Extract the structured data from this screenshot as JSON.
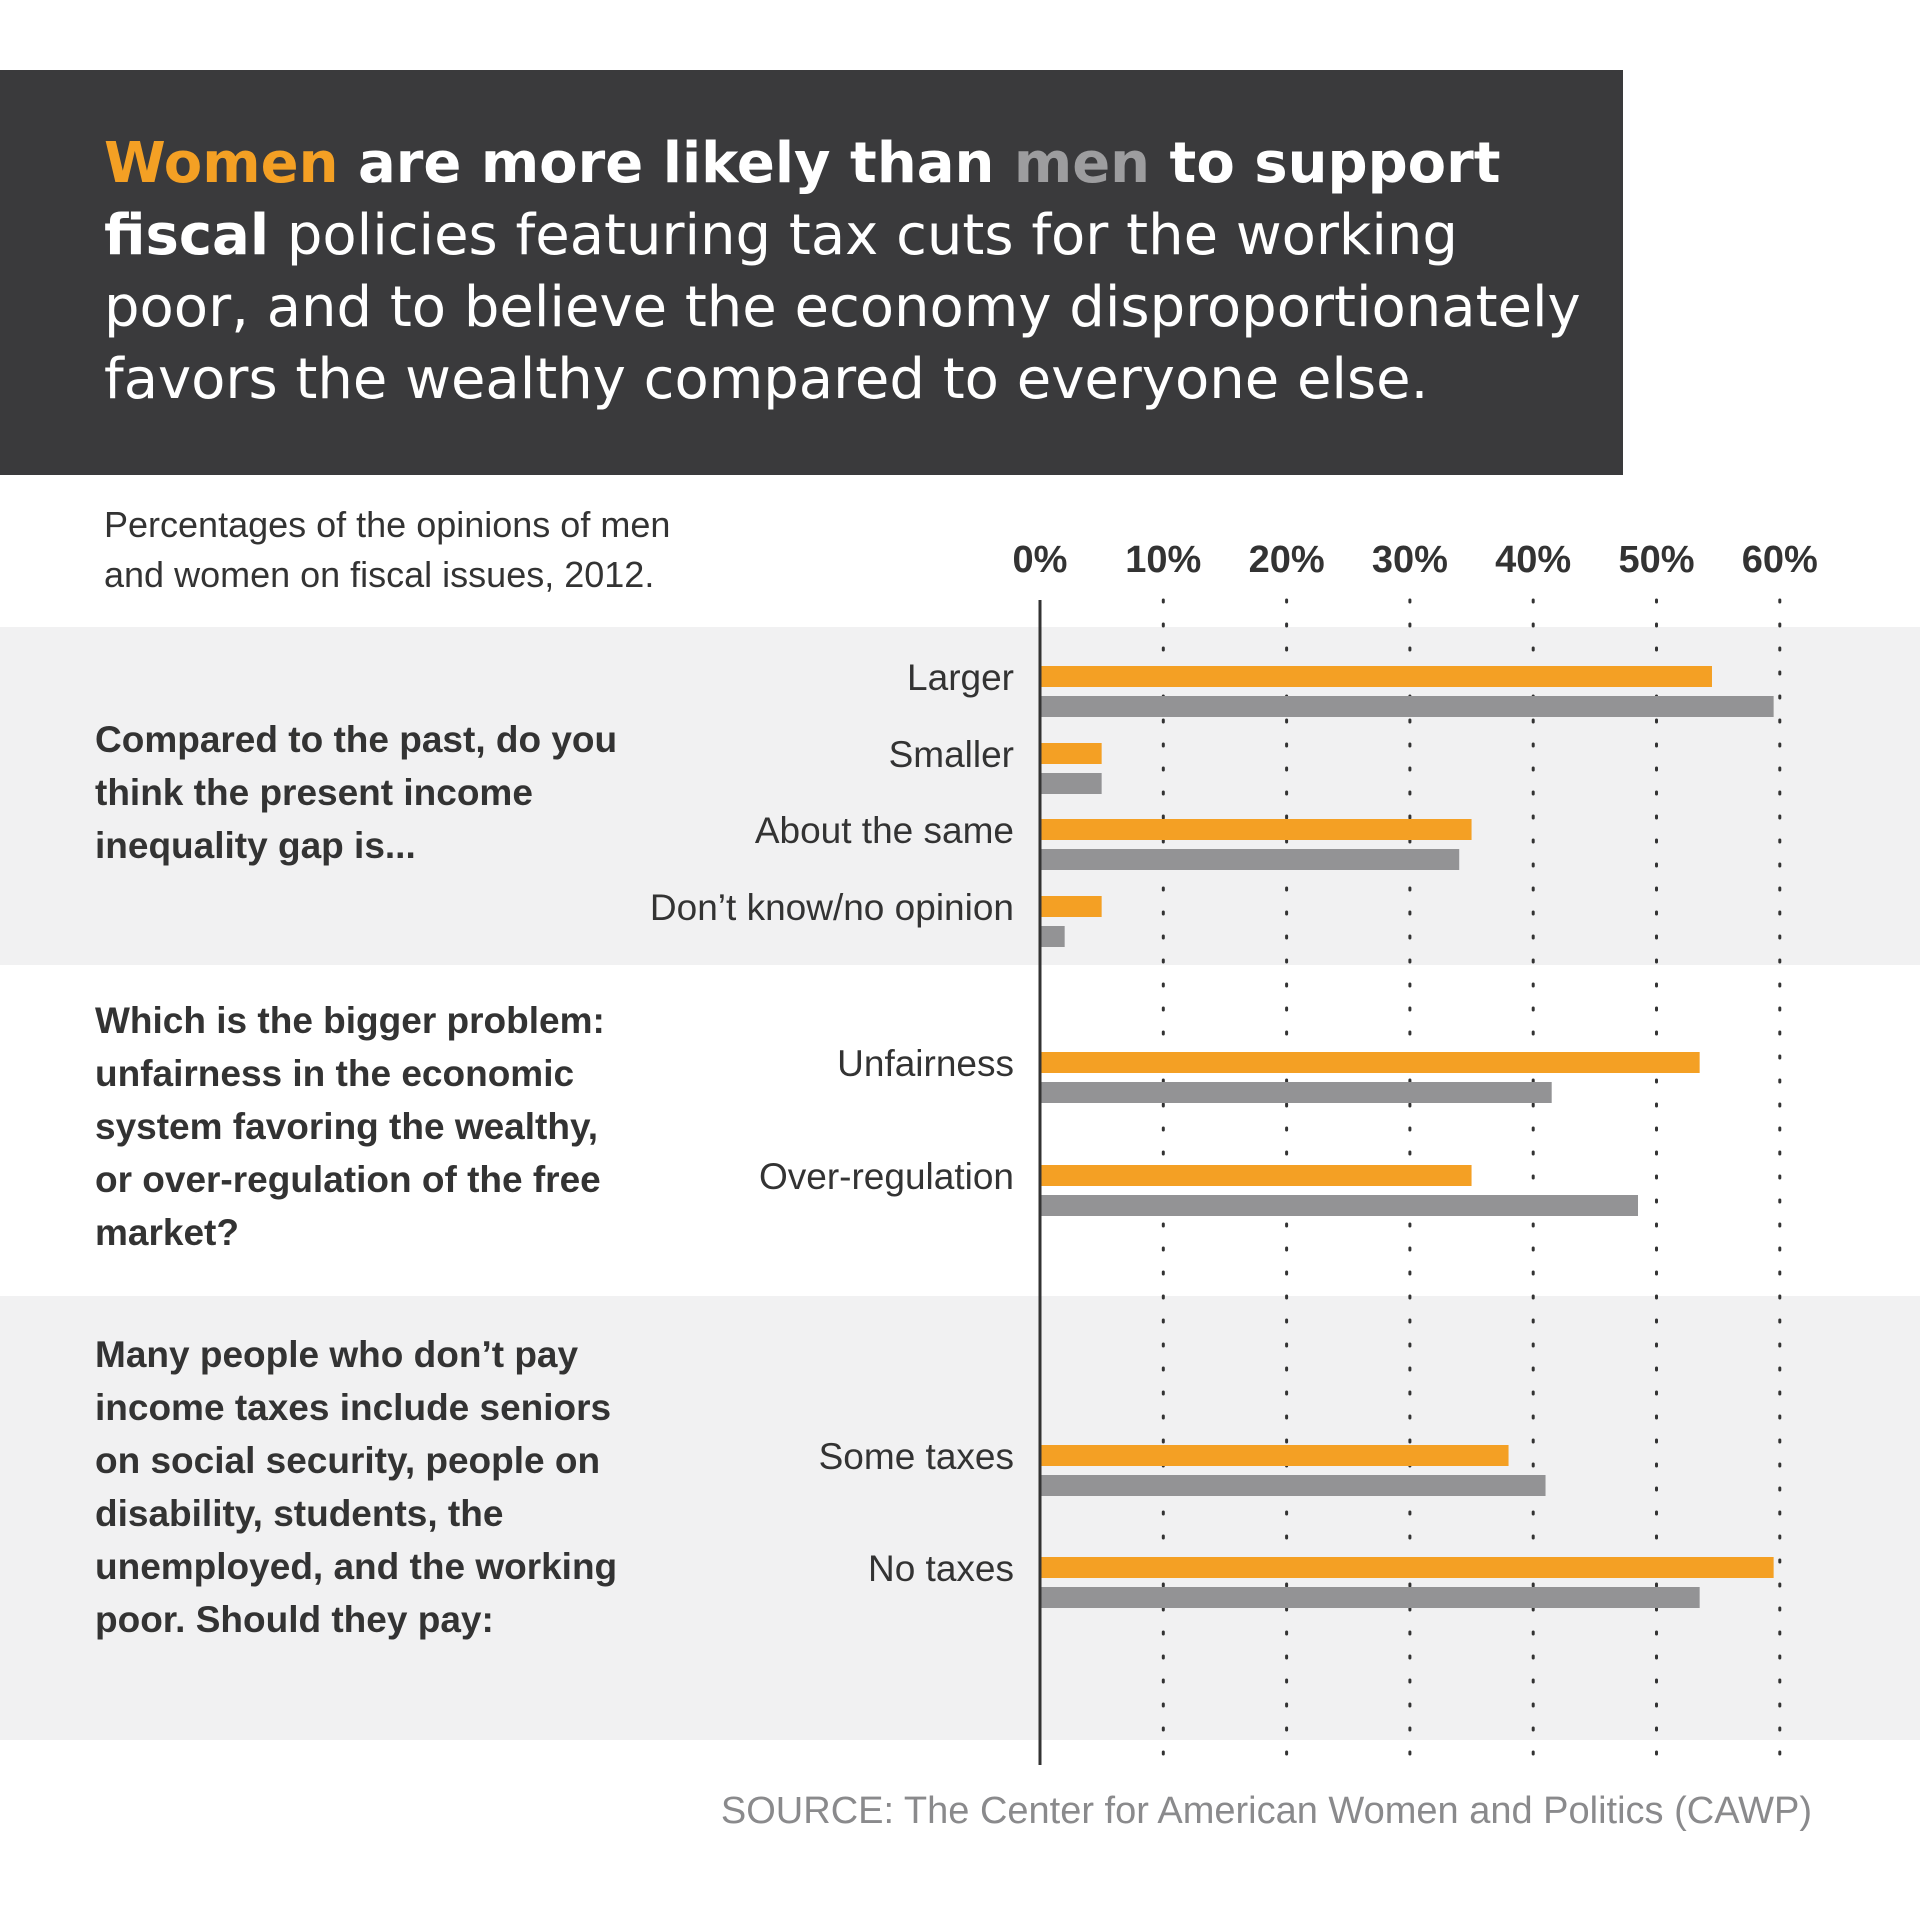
{
  "header": {
    "women_word": "Women",
    "bold_middle": " are more likely than ",
    "men_word": "men",
    "bold_tail": " to support fiscal",
    "rest": " policies featuring tax cuts for the working poor, and to believe the economy disproportionately favors the wealthy compared to everyone else."
  },
  "subtitle_lines": [
    "Percentages of the opinions of men",
    "and women on fiscal issues, 2012."
  ],
  "source": "SOURCE: The Center for American Women and Politics (CAWP)",
  "colors": {
    "women": "#f4a024",
    "men": "#939395",
    "header_bg": "#3a3a3c",
    "band": "#f1f1f2"
  },
  "chart_data": {
    "type": "bar",
    "orientation": "horizontal",
    "xlim": [
      0,
      60
    ],
    "ticks": [
      "0%",
      "10%",
      "20%",
      "30%",
      "40%",
      "50%",
      "60%"
    ],
    "grid": "dotted vertical",
    "series_order": [
      "Women",
      "Men"
    ],
    "groups": [
      {
        "question": "Compared to the past, do you think the present income inequality gap is...",
        "categories": [
          "Larger",
          "Smaller",
          "About the same",
          "Don’t know/no opinion"
        ],
        "women": [
          54.5,
          5,
          35,
          5
        ],
        "men": [
          59.5,
          5,
          34,
          2
        ]
      },
      {
        "question": "Which is the bigger problem: unfairness in the economic system favoring the wealthy, or over-regulation of the free market?",
        "categories": [
          "Unfairness",
          "Over-regulation"
        ],
        "women": [
          53.5,
          35
        ],
        "men": [
          41.5,
          48.5
        ]
      },
      {
        "question": "Many people who don’t pay income taxes include seniors on social security, people on disability, students, the unemployed, and the working poor. Should they pay:",
        "categories": [
          "Some taxes",
          "No taxes"
        ],
        "women": [
          38,
          59.5
        ],
        "men": [
          41,
          53.5
        ]
      }
    ]
  }
}
